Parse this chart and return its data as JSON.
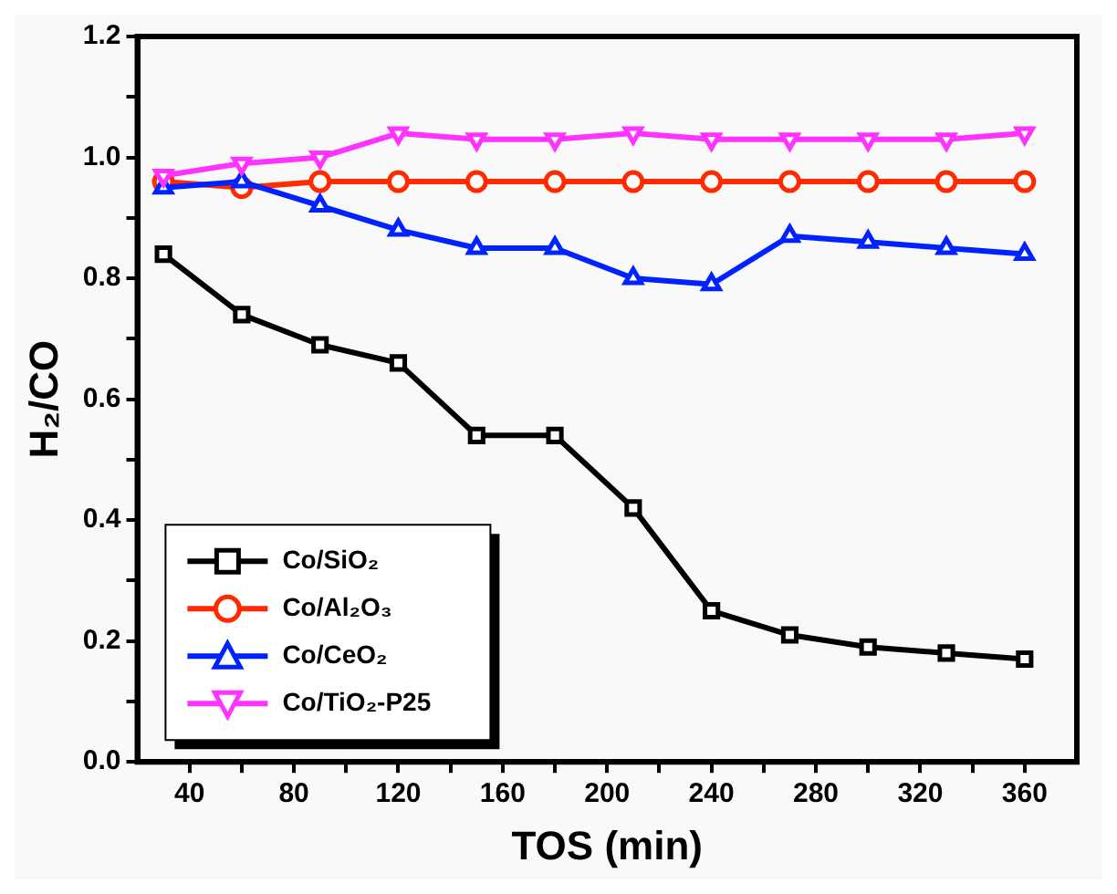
{
  "chart_data": {
    "type": "line",
    "xlabel": "TOS (min)",
    "ylabel": "H₂/CO",
    "x": [
      30,
      60,
      90,
      120,
      150,
      180,
      210,
      240,
      270,
      300,
      330,
      360
    ],
    "xlim": [
      20,
      380
    ],
    "xticks": [
      40,
      {
        "value": 60,
        "label": null
      },
      80,
      {
        "value": 100,
        "label": null
      },
      120,
      {
        "value": 140,
        "label": null
      },
      160,
      {
        "value": 180,
        "label": null
      },
      200,
      {
        "value": 220,
        "label": null
      },
      240,
      {
        "value": 260,
        "label": null
      },
      280,
      {
        "value": 300,
        "label": null
      },
      320,
      {
        "value": 340,
        "label": null
      },
      360
    ],
    "ylim": [
      0,
      1.2
    ],
    "yticks": [
      {
        "value": 0,
        "label": "0.0"
      },
      {
        "value": 0.1,
        "label": null
      },
      {
        "value": 0.2,
        "label": "0.2"
      },
      {
        "value": 0.3,
        "label": null
      },
      {
        "value": 0.4,
        "label": "0.4"
      },
      {
        "value": 0.5,
        "label": null
      },
      {
        "value": 0.6,
        "label": "0.6"
      },
      {
        "value": 0.7,
        "label": null
      },
      {
        "value": 0.8,
        "label": "0.8"
      },
      {
        "value": 0.9,
        "label": null
      },
      {
        "value": 1.0,
        "label": "1.0"
      },
      {
        "value": 1.1,
        "label": null
      },
      {
        "value": 1.2,
        "label": "1.2"
      }
    ],
    "grid": false,
    "legend": "bottom left",
    "line_style": "solid",
    "series": [
      {
        "name": "Co/SiO₂",
        "color": "#000000",
        "marker": "square",
        "values": [
          0.84,
          0.74,
          0.69,
          0.66,
          0.54,
          0.54,
          0.42,
          0.25,
          0.21,
          0.19,
          0.18,
          0.17
        ]
      },
      {
        "name": "Co/Al₂O₃",
        "color": "#ff2a00",
        "marker": "circle",
        "values": [
          0.96,
          0.95,
          0.96,
          0.96,
          0.96,
          0.96,
          0.96,
          0.96,
          0.96,
          0.96,
          0.96,
          0.96
        ]
      },
      {
        "name": "Co/CeO₂",
        "color": "#0022ff",
        "marker": "triangle",
        "values": [
          0.95,
          0.96,
          0.92,
          0.88,
          0.85,
          0.85,
          0.8,
          0.79,
          0.87,
          0.86,
          0.85,
          0.84
        ]
      },
      {
        "name": "Co/TiO₂-P25",
        "color": "#ff33ff",
        "marker": "triangle-down",
        "values": [
          0.97,
          0.99,
          1.0,
          1.04,
          1.03,
          1.03,
          1.04,
          1.03,
          1.03,
          1.03,
          1.03,
          1.04
        ]
      }
    ]
  }
}
